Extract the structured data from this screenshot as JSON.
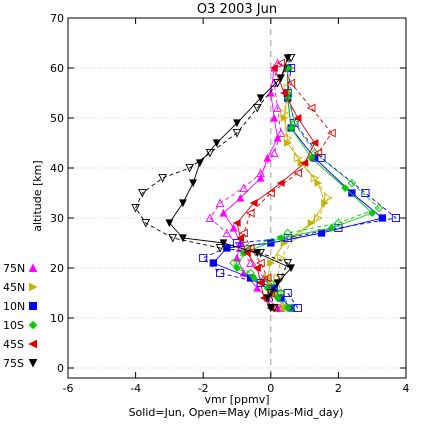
{
  "chart_data": {
    "type": "line",
    "title": "O3 2003 Jun",
    "xlabel": "vmr [ppmv]",
    "ylabel": "altitude [km]",
    "note": "Solid=Jun, Open=May  (Mipas-Mid_day)",
    "xlim": [
      -6,
      4
    ],
    "ylim": [
      -2,
      70
    ],
    "xticks": [
      "-6",
      "-4",
      "-2",
      "0",
      "2",
      "4"
    ],
    "yticks": [
      "0",
      "10",
      "20",
      "30",
      "40",
      "50",
      "60",
      "70"
    ],
    "grid": "horizontal dotted lines",
    "zero_line": "vertical dashed line at x=0",
    "legend_placement": "left",
    "series": [
      {
        "name": "75N",
        "color": "#ff00ff",
        "marker": "triangle-up",
        "jun": [
          [
            0.2,
            12
          ],
          [
            -0.1,
            14
          ],
          [
            -0.4,
            16
          ],
          [
            -0.8,
            19
          ],
          [
            -1.0,
            22
          ],
          [
            -0.9,
            25
          ],
          [
            -1.1,
            28
          ],
          [
            -1.4,
            31
          ],
          [
            -0.9,
            34
          ],
          [
            -0.3,
            38
          ],
          [
            -0.1,
            42
          ],
          [
            0.2,
            46
          ],
          [
            0.1,
            50
          ],
          [
            0.0,
            55
          ],
          [
            0.1,
            60
          ]
        ],
        "may": [
          [
            0.3,
            12
          ],
          [
            0.1,
            15
          ],
          [
            -0.2,
            18
          ],
          [
            -0.6,
            21
          ],
          [
            -0.9,
            24
          ],
          [
            -1.3,
            27
          ],
          [
            -1.8,
            30
          ],
          [
            -1.5,
            33
          ],
          [
            -0.8,
            36
          ],
          [
            -0.3,
            39
          ],
          [
            0.1,
            43
          ],
          [
            0.3,
            47
          ],
          [
            0.2,
            52
          ],
          [
            0.1,
            57
          ],
          [
            0.2,
            61
          ]
        ]
      },
      {
        "name": "45N",
        "color": "#c8b400",
        "marker": "triangle-right",
        "jun": [
          [
            0.4,
            12
          ],
          [
            0.1,
            15
          ],
          [
            -0.1,
            18
          ],
          [
            0.0,
            21
          ],
          [
            0.4,
            25
          ],
          [
            1.2,
            29
          ],
          [
            1.6,
            33
          ],
          [
            1.4,
            37
          ],
          [
            0.9,
            41
          ],
          [
            0.5,
            45
          ],
          [
            0.4,
            50
          ],
          [
            0.5,
            55
          ],
          [
            0.6,
            60
          ]
        ],
        "may": [
          [
            0.5,
            12
          ],
          [
            0.3,
            15
          ],
          [
            0.2,
            18
          ],
          [
            0.3,
            22
          ],
          [
            0.7,
            26
          ],
          [
            1.4,
            30
          ],
          [
            1.7,
            34
          ],
          [
            1.3,
            38
          ],
          [
            0.8,
            42
          ],
          [
            0.5,
            46
          ],
          [
            0.4,
            51
          ],
          [
            0.5,
            56
          ],
          [
            0.5,
            60
          ]
        ]
      },
      {
        "name": "10N",
        "color": "#0000ff",
        "marker": "square",
        "jun": [
          [
            0.6,
            12
          ],
          [
            0.3,
            14
          ],
          [
            0.1,
            16
          ],
          [
            -0.6,
            18
          ],
          [
            -1.7,
            21
          ],
          [
            -1.3,
            24
          ],
          [
            0.0,
            25
          ],
          [
            1.5,
            27
          ],
          [
            3.3,
            30
          ],
          [
            2.4,
            35
          ],
          [
            1.3,
            42
          ],
          [
            0.6,
            48
          ],
          [
            0.5,
            54
          ],
          [
            0.5,
            60
          ]
        ],
        "may": [
          [
            0.8,
            12
          ],
          [
            0.5,
            15
          ],
          [
            -0.3,
            17
          ],
          [
            -1.5,
            19
          ],
          [
            -2.0,
            22
          ],
          [
            -1.0,
            25
          ],
          [
            0.5,
            26
          ],
          [
            2.0,
            28
          ],
          [
            3.7,
            30
          ],
          [
            2.8,
            35
          ],
          [
            1.5,
            42
          ],
          [
            0.7,
            49
          ],
          [
            0.5,
            55
          ],
          [
            0.6,
            60
          ]
        ]
      },
      {
        "name": "10S",
        "color": "#00cc00",
        "marker": "diamond",
        "jun": [
          [
            0.5,
            12
          ],
          [
            0.2,
            14
          ],
          [
            -0.1,
            16
          ],
          [
            -0.5,
            18
          ],
          [
            -1.0,
            20
          ],
          [
            -0.8,
            23
          ],
          [
            0.3,
            26
          ],
          [
            1.8,
            28
          ],
          [
            3.0,
            31
          ],
          [
            2.2,
            36
          ],
          [
            1.2,
            42
          ],
          [
            0.6,
            48
          ],
          [
            0.5,
            54
          ],
          [
            0.5,
            60
          ]
        ],
        "may": [
          [
            0.6,
            12
          ],
          [
            0.3,
            15
          ],
          [
            0.0,
            17
          ],
          [
            -0.6,
            19
          ],
          [
            -1.1,
            21
          ],
          [
            -0.7,
            24
          ],
          [
            0.5,
            27
          ],
          [
            2.0,
            29
          ],
          [
            3.2,
            32
          ],
          [
            2.4,
            37
          ],
          [
            1.3,
            43
          ],
          [
            0.7,
            49
          ],
          [
            0.5,
            55
          ],
          [
            0.5,
            60
          ]
        ]
      },
      {
        "name": "45S",
        "color": "#dd0000",
        "marker": "triangle-left",
        "jun": [
          [
            0.0,
            12
          ],
          [
            -0.2,
            14
          ],
          [
            -0.3,
            17
          ],
          [
            -0.4,
            20
          ],
          [
            -0.7,
            23
          ],
          [
            -0.9,
            26
          ],
          [
            -1.0,
            29
          ],
          [
            -0.5,
            33
          ],
          [
            0.3,
            37
          ],
          [
            1.0,
            41
          ],
          [
            1.3,
            45
          ],
          [
            0.8,
            50
          ],
          [
            0.4,
            55
          ],
          [
            0.1,
            60
          ]
        ],
        "may": [
          [
            0.1,
            12
          ],
          [
            0.0,
            15
          ],
          [
            -0.1,
            18
          ],
          [
            -0.3,
            21
          ],
          [
            -0.6,
            24
          ],
          [
            -0.8,
            27
          ],
          [
            -0.6,
            31
          ],
          [
            0.0,
            35
          ],
          [
            0.8,
            39
          ],
          [
            1.4,
            43
          ],
          [
            1.8,
            47
          ],
          [
            1.2,
            52
          ],
          [
            0.6,
            57
          ],
          [
            0.3,
            61
          ]
        ]
      },
      {
        "name": "75S",
        "color": "#000000",
        "marker": "triangle-down",
        "jun": [
          [
            0.0,
            12
          ],
          [
            -0.1,
            14
          ],
          [
            0.2,
            17
          ],
          [
            0.6,
            20
          ],
          [
            -0.4,
            23
          ],
          [
            -1.4,
            25
          ],
          [
            -2.6,
            26
          ],
          [
            -3.0,
            29
          ],
          [
            -2.6,
            33
          ],
          [
            -2.3,
            37
          ],
          [
            -2.1,
            41
          ],
          [
            -1.6,
            45
          ],
          [
            -1.0,
            49
          ],
          [
            -0.3,
            54
          ],
          [
            0.3,
            58
          ],
          [
            0.5,
            62
          ]
        ],
        "may": [
          [
            0.1,
            12
          ],
          [
            0.0,
            15
          ],
          [
            0.3,
            18
          ],
          [
            0.5,
            21
          ],
          [
            -0.3,
            23
          ],
          [
            -1.5,
            24
          ],
          [
            -2.9,
            26
          ],
          [
            -3.7,
            29
          ],
          [
            -4.0,
            32
          ],
          [
            -3.8,
            35
          ],
          [
            -3.2,
            38
          ],
          [
            -2.4,
            40
          ],
          [
            -1.8,
            43
          ],
          [
            -1.0,
            47
          ],
          [
            -0.4,
            52
          ],
          [
            0.2,
            57
          ],
          [
            0.6,
            62
          ]
        ]
      }
    ]
  }
}
